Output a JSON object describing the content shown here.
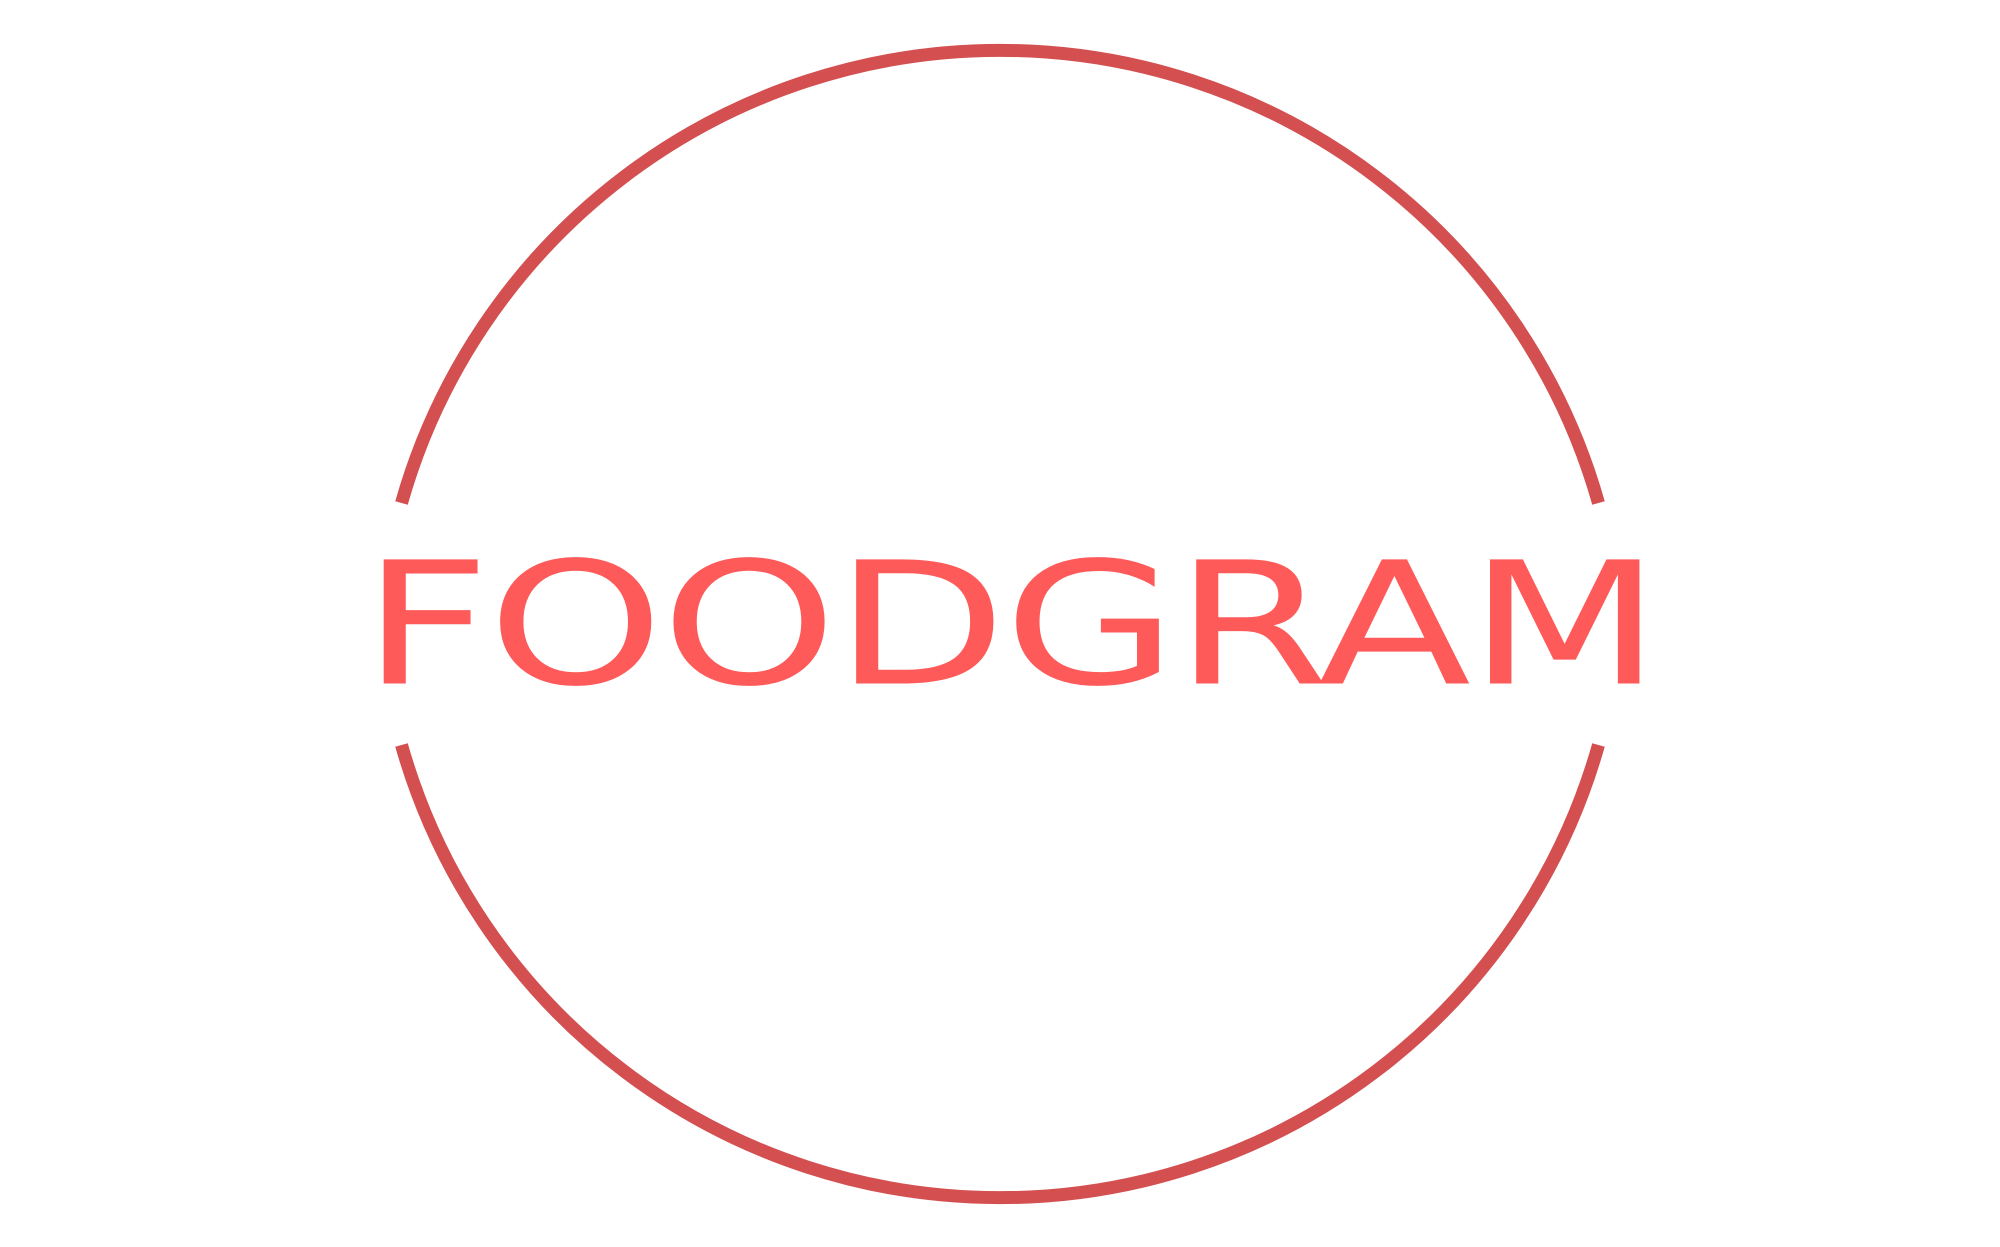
{
  "logo": {
    "wordmark": "FOODGRAM",
    "ring_color": "#d45050",
    "text_color": "#ff5a5a",
    "background": "#ffffff"
  }
}
